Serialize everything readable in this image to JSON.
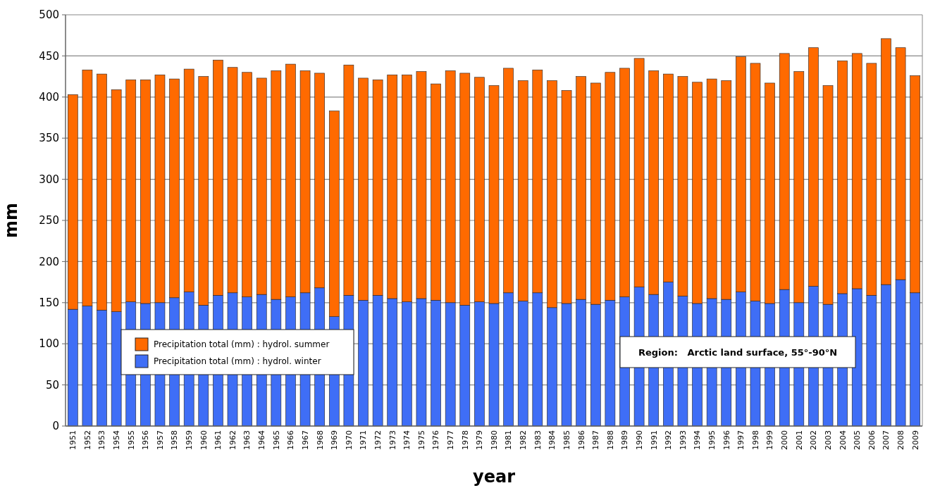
{
  "chart_data": {
    "type": "bar",
    "stacked": true,
    "xlabel": "year",
    "ylabel": "mm",
    "categories": [
      "1951",
      "1952",
      "1953",
      "1954",
      "1955",
      "1956",
      "1957",
      "1958",
      "1959",
      "1960",
      "1961",
      "1962",
      "1963",
      "1964",
      "1965",
      "1966",
      "1967",
      "1968",
      "1969",
      "1970",
      "1971",
      "1972",
      "1973",
      "1974",
      "1975",
      "1976",
      "1977",
      "1978",
      "1979",
      "1980",
      "1981",
      "1982",
      "1983",
      "1984",
      "1985",
      "1986",
      "1987",
      "1988",
      "1989",
      "1990",
      "1991",
      "1992",
      "1993",
      "1994",
      "1995",
      "1996",
      "1997",
      "1998",
      "1999",
      "2000",
      "2001",
      "2002",
      "2003",
      "2004",
      "2005",
      "2006",
      "2007",
      "2008",
      "2009"
    ],
    "series": [
      {
        "name": "Precipitation total (mm) : hydrol. winter",
        "color": "#3f6ef6",
        "values": [
          142,
          146,
          141,
          139,
          151,
          149,
          150,
          156,
          163,
          147,
          159,
          162,
          157,
          160,
          154,
          157,
          162,
          168,
          133,
          159,
          153,
          159,
          155,
          151,
          155,
          153,
          150,
          147,
          151,
          149,
          162,
          152,
          162,
          144,
          149,
          154,
          148,
          153,
          157,
          169,
          160,
          175,
          158,
          149,
          155,
          154,
          163,
          152,
          149,
          166,
          150,
          170,
          148,
          161,
          167,
          159,
          172,
          178,
          162
        ]
      },
      {
        "name": "Precipitation total (mm) : hydrol. summer",
        "color": "#ff6a00",
        "values": [
          261,
          287,
          287,
          270,
          270,
          272,
          277,
          266,
          271,
          278,
          286,
          274,
          273,
          263,
          278,
          283,
          270,
          261,
          250,
          280,
          270,
          262,
          272,
          276,
          276,
          263,
          282,
          282,
          273,
          265,
          273,
          268,
          271,
          276,
          259,
          271,
          269,
          277,
          278,
          278,
          272,
          253,
          267,
          269,
          267,
          266,
          286,
          289,
          268,
          287,
          281,
          290,
          266,
          283,
          286,
          282,
          299,
          282,
          264
        ]
      }
    ],
    "ylim": [
      0,
      500
    ],
    "yticks": [
      0,
      50,
      100,
      150,
      200,
      250,
      300,
      350,
      400,
      450,
      500
    ],
    "grid": "y",
    "legend": "left",
    "annotations": [
      "Region:   Arctic land surface, 55°-90°N"
    ]
  }
}
